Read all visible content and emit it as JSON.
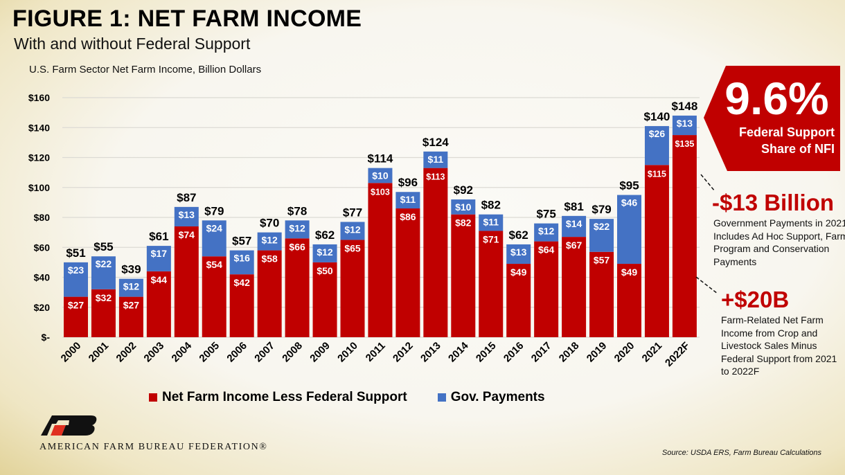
{
  "header": {
    "title": "FIGURE 1: NET FARM INCOME",
    "subtitle": "With and without Federal Support",
    "unit_label": "U.S. Farm Sector Net Farm Income, Billion Dollars"
  },
  "chart_data": {
    "type": "bar",
    "stacked": true,
    "categories": [
      "2000",
      "2001",
      "2002",
      "2003",
      "2004",
      "2005",
      "2006",
      "2007",
      "2008",
      "2009",
      "2010",
      "2011",
      "2012",
      "2013",
      "2014",
      "2015",
      "2016",
      "2017",
      "2018",
      "2019",
      "2020",
      "2021",
      "2022F"
    ],
    "series": [
      {
        "name": "Net Farm Income Less Federal Support",
        "color": "#C00000",
        "values": [
          27,
          32,
          27,
          44,
          74,
          54,
          42,
          58,
          66,
          50,
          65,
          103,
          86,
          113,
          82,
          71,
          49,
          64,
          67,
          57,
          49,
          115,
          135
        ]
      },
      {
        "name": "Gov. Payments",
        "color": "#4472C4",
        "values": [
          23,
          22,
          12,
          17,
          13,
          24,
          16,
          12,
          12,
          12,
          12,
          10,
          11,
          11,
          10,
          11,
          13,
          12,
          14,
          22,
          46,
          26,
          13
        ]
      }
    ],
    "totals": [
      51,
      55,
      39,
      61,
      87,
      79,
      57,
      70,
      78,
      62,
      77,
      114,
      96,
      124,
      92,
      82,
      62,
      75,
      81,
      79,
      95,
      140,
      148
    ],
    "currency_prefix": "$",
    "ylim": [
      0,
      160
    ],
    "yticks": [
      0,
      20,
      40,
      60,
      80,
      100,
      120,
      140,
      160
    ],
    "ytick_labels": [
      "$-",
      "$20",
      "$40",
      "$60",
      "$80",
      "$100",
      "$120",
      "$140",
      "$160"
    ],
    "grid": true,
    "legend_position": "bottom"
  },
  "callout": {
    "value": "9.6%",
    "line1": "Federal Support",
    "line2": "Share of NFI",
    "color": "#C00000"
  },
  "annotations": [
    {
      "headline": "-$13 Billion",
      "text": "Government Payments in 2021 Includes Ad Hoc Support, Farm Program and Conservation Payments"
    },
    {
      "headline": "+$20B",
      "text": "Farm-Related Net Farm Income from Crop and Livestock Sales Minus Federal Support from 2021 to 2022F"
    }
  ],
  "legend": [
    {
      "label": "Net Farm Income Less Federal Support",
      "color": "#C00000"
    },
    {
      "label": "Gov. Payments",
      "color": "#4472C4"
    }
  ],
  "footer": {
    "source": "Source: USDA ERS, Farm Bureau Calculations",
    "logo_text": "AMERICAN FARM BUREAU FEDERATION®"
  }
}
